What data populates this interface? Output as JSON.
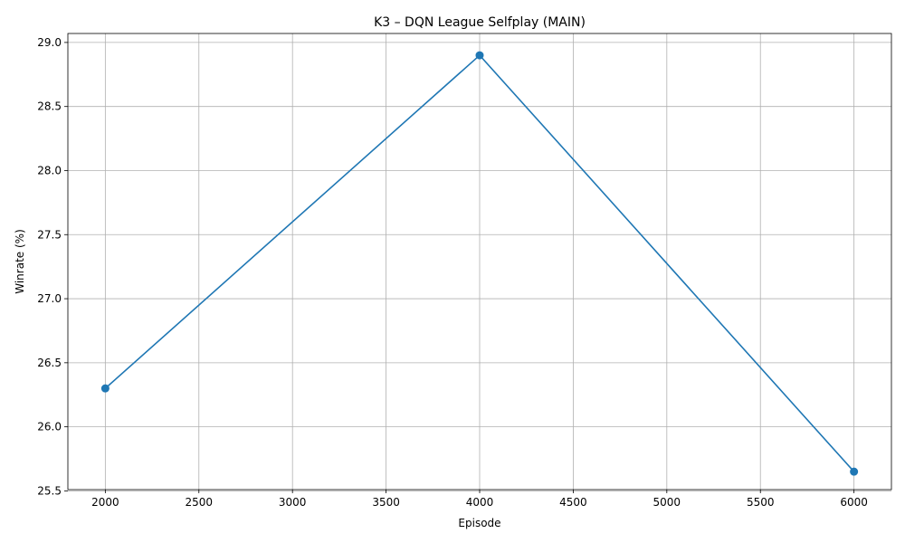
{
  "chart_data": {
    "type": "line",
    "title": "K3 – DQN League Selfplay (MAIN)",
    "xlabel": "Episode",
    "ylabel": "Winrate (%)",
    "x": [
      2000,
      4000,
      6000
    ],
    "series": [
      {
        "values": [
          26.3,
          28.9,
          25.65
        ],
        "color": "#1f77b4",
        "marker": "circle"
      }
    ],
    "xlim": [
      1800,
      6200
    ],
    "ylim": [
      25.51,
      29.07
    ],
    "xticks": [
      2000,
      2500,
      3000,
      3500,
      4000,
      4500,
      5000,
      5500,
      6000
    ],
    "xtick_labels": [
      "2000",
      "2500",
      "3000",
      "3500",
      "4000",
      "4500",
      "5000",
      "5500",
      "6000"
    ],
    "yticks": [
      25.5,
      26.0,
      26.5,
      27.0,
      27.5,
      28.0,
      28.5,
      29.0
    ],
    "ytick_labels": [
      "25.5",
      "26.0",
      "26.5",
      "27.0",
      "27.5",
      "28.0",
      "28.5",
      "29.0"
    ],
    "grid": true,
    "legend": "none"
  }
}
